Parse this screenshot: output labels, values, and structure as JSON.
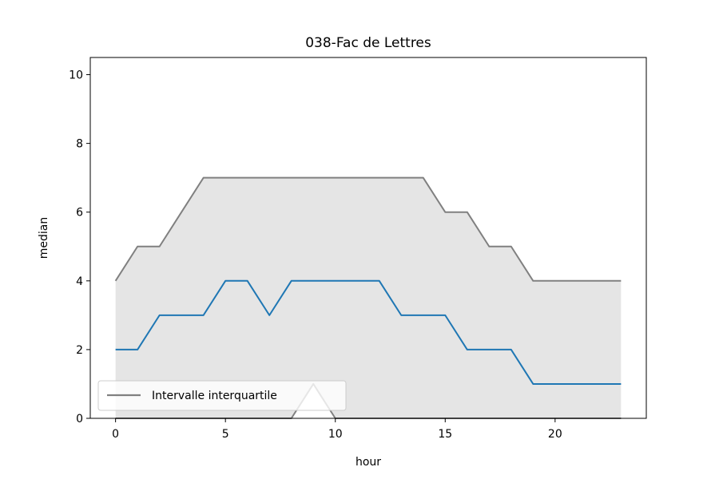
{
  "chart_data": {
    "type": "line",
    "title": "038-Fac de Lettres",
    "xlabel": "hour",
    "ylabel": "median",
    "xlim": [
      -1.15,
      24.15
    ],
    "ylim": [
      0,
      10.5
    ],
    "x_ticks": [
      0,
      5,
      10,
      15,
      20
    ],
    "y_ticks": [
      0,
      2,
      4,
      6,
      8,
      10
    ],
    "grid": false,
    "legend_position": "lower-left",
    "x": [
      0,
      1,
      2,
      3,
      4,
      5,
      6,
      7,
      8,
      9,
      10,
      11,
      12,
      13,
      14,
      15,
      16,
      17,
      18,
      19,
      20,
      21,
      22,
      23
    ],
    "series": [
      {
        "values": [
          2,
          2,
          3,
          3,
          3,
          4,
          4,
          3,
          4,
          4,
          4,
          4,
          4,
          3,
          3,
          3,
          2,
          2,
          2,
          1,
          1,
          1,
          1,
          1
        ],
        "color": "#1f77b4"
      },
      {
        "name": "Intervalle interquartile",
        "kind": "band",
        "upper": [
          4,
          5,
          5,
          6,
          7,
          7,
          7,
          7,
          7,
          7,
          7,
          7,
          7,
          7,
          7,
          6,
          6,
          5,
          5,
          4,
          4,
          4,
          4,
          4
        ],
        "lower": [
          0,
          0,
          0,
          0,
          0,
          0,
          0,
          0,
          0,
          1,
          0,
          0,
          0,
          0,
          0,
          0,
          0,
          0,
          0,
          0,
          0,
          0,
          0,
          0
        ],
        "line_color": "#808080",
        "fill_color": "#e5e5e5"
      }
    ]
  }
}
